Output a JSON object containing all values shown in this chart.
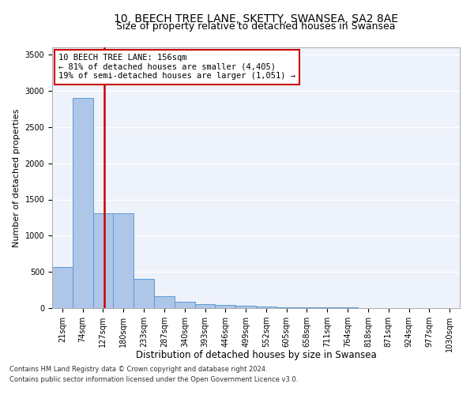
{
  "title": "10, BEECH TREE LANE, SKETTY, SWANSEA, SA2 8AE",
  "subtitle": "Size of property relative to detached houses in Swansea",
  "xlabel": "Distribution of detached houses by size in Swansea",
  "ylabel": "Number of detached properties",
  "footnote1": "Contains HM Land Registry data © Crown copyright and database right 2024.",
  "footnote2": "Contains public sector information licensed under the Open Government Licence v3.0.",
  "annotation_line1": "10 BEECH TREE LANE: 156sqm",
  "annotation_line2": "← 81% of detached houses are smaller (4,405)",
  "annotation_line3": "19% of semi-detached houses are larger (1,051) →",
  "bar_edges": [
    21,
    74,
    127,
    180,
    233,
    287,
    340,
    393,
    446,
    499,
    552,
    605,
    658,
    711,
    764,
    818,
    871,
    924,
    977,
    1030,
    1083
  ],
  "bar_heights": [
    570,
    2900,
    1310,
    1310,
    400,
    160,
    90,
    60,
    45,
    30,
    20,
    15,
    10,
    8,
    6,
    5,
    4,
    3,
    2,
    2
  ],
  "bar_color": "#aec6e8",
  "bar_edge_color": "#5b9bd5",
  "vline_color": "#cc0000",
  "vline_x": 156,
  "ylim": [
    0,
    3600
  ],
  "yticks": [
    0,
    500,
    1000,
    1500,
    2000,
    2500,
    3000,
    3500
  ],
  "title_fontsize": 10,
  "subtitle_fontsize": 9,
  "ylabel_fontsize": 8,
  "xlabel_fontsize": 8.5,
  "tick_fontsize": 7,
  "annotation_fontsize": 7.5,
  "footnote_fontsize": 6,
  "background_color": "#eef2fb"
}
